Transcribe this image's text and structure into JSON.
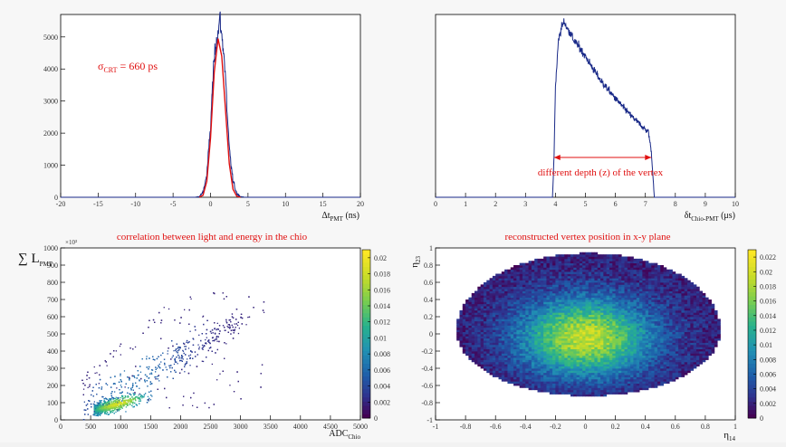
{
  "colors": {
    "background": "#f7f7f7",
    "histogram": "#1a2a88",
    "fit": "#e01010",
    "annotation": "#e01010"
  },
  "chart_data": [
    {
      "id": "crt",
      "type": "line",
      "xlabel": "Δt",
      "xlabel_sub": "PMT",
      "xlabel_unit": " (ns)",
      "xlim": [
        -20,
        20
      ],
      "ylim": [
        0,
        5700
      ],
      "xticks": [
        -20,
        -15,
        -10,
        -5,
        0,
        5,
        10,
        15,
        20
      ],
      "yticks": [
        0,
        1000,
        2000,
        3000,
        4000,
        5000
      ],
      "annotation": {
        "prefix": "σ",
        "sub": "CRT",
        "suffix": " = 660 ps"
      },
      "series": [
        {
          "style": "histogram",
          "x": [
            -20,
            -2,
            -1.5,
            -1,
            -0.5,
            0,
            0.25,
            0.5,
            0.75,
            1,
            1.25,
            1.5,
            1.75,
            2,
            2.25,
            2.5,
            3,
            3.5,
            4,
            4.5,
            20
          ],
          "y": [
            0,
            0,
            20,
            150,
            700,
            2200,
            3400,
            4300,
            4900,
            5100,
            5600,
            5000,
            4600,
            3700,
            2500,
            1500,
            500,
            120,
            20,
            0,
            0
          ]
        },
        {
          "style": "fit",
          "x": [
            -1.5,
            -1,
            -0.5,
            0,
            0.5,
            1,
            1.5,
            2,
            2.5,
            3,
            3.5,
            4
          ],
          "y": [
            5,
            60,
            500,
            1850,
            3900,
            4950,
            4400,
            2700,
            1050,
            250,
            30,
            0
          ]
        }
      ]
    },
    {
      "id": "drift",
      "type": "line",
      "xlabel": "δt",
      "xlabel_sub": "Chio-PMT",
      "xlabel_unit": " (μs)",
      "xlim": [
        0,
        10
      ],
      "ylim": [
        0,
        1
      ],
      "xticks": [
        0,
        1,
        2,
        3,
        4,
        5,
        6,
        7,
        8,
        9,
        10
      ],
      "annotation": {
        "text": "different depth (z) of the vertex",
        "arrow_from": 3.95,
        "arrow_to": 7.2
      },
      "series": [
        {
          "style": "histogram",
          "x": [
            0,
            3.9,
            3.95,
            4.0,
            4.1,
            4.2,
            4.3,
            4.4,
            4.5,
            4.6,
            4.8,
            5.0,
            5.5,
            6.0,
            6.5,
            7.0,
            7.1,
            7.2,
            7.3,
            10
          ],
          "y": [
            0,
            0,
            0.2,
            0.6,
            0.86,
            0.93,
            0.96,
            0.92,
            0.9,
            0.86,
            0.82,
            0.77,
            0.64,
            0.54,
            0.45,
            0.37,
            0.36,
            0.25,
            0,
            0
          ]
        }
      ]
    },
    {
      "id": "corr",
      "type": "heatmap",
      "title": "correlation between light and energy in the chio",
      "xlabel": "ADC",
      "xlabel_sub": "Chio",
      "ylabel": "∑ L",
      "ylabel_sub": "PMT",
      "y_multiplier": "×10³",
      "xlim": [
        0,
        5000
      ],
      "ylim": [
        0,
        1000
      ],
      "xticks": [
        0,
        500,
        1000,
        1500,
        2000,
        2500,
        3000,
        3500,
        4000,
        4500,
        5000
      ],
      "yticks": [
        0,
        100,
        200,
        300,
        400,
        500,
        600,
        700,
        800,
        900,
        1000
      ],
      "colorbar": {
        "ticks": [
          "0",
          "0.002",
          "0.004",
          "0.006",
          "0.008",
          "0.01",
          "0.012",
          "0.014",
          "0.016",
          "0.018",
          "0.02"
        ],
        "max": 0.021
      }
    },
    {
      "id": "vertex",
      "type": "heatmap",
      "title": "reconstructed vertex position in x-y plane",
      "xlabel": "η",
      "xlabel_sub": "14",
      "ylabel": "η",
      "ylabel_sub": "23",
      "xlim": [
        -1,
        1
      ],
      "ylim": [
        -1,
        1
      ],
      "xticks": [
        -1,
        -0.8,
        -0.6,
        -0.4,
        -0.2,
        0,
        0.2,
        0.4,
        0.6,
        0.8,
        1
      ],
      "yticks": [
        -1,
        -0.8,
        -0.6,
        -0.4,
        -0.2,
        0,
        0.2,
        0.4,
        0.6,
        0.8,
        1
      ],
      "colorbar": {
        "ticks": [
          "0",
          "0.002",
          "0.004",
          "0.006",
          "0.008",
          "0.01",
          "0.012",
          "0.014",
          "0.016",
          "0.018",
          "0.02",
          "0.022"
        ],
        "max": 0.023
      }
    }
  ]
}
